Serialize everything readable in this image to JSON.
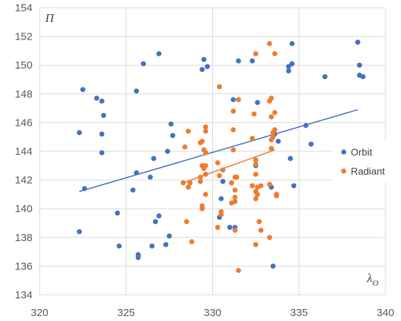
{
  "chart_data": {
    "type": "scatter",
    "xlabel": "λ",
    "xlabel_subscript": "ʘ",
    "ylabel": "Π",
    "xlim": [
      320,
      340
    ],
    "ylim": [
      134,
      154
    ],
    "xticks": [
      320,
      325,
      330,
      335,
      340
    ],
    "yticks": [
      134,
      136,
      138,
      140,
      142,
      144,
      146,
      148,
      150,
      152,
      154
    ],
    "grid": true,
    "legend_position": "right",
    "series": [
      {
        "name": "Orbit",
        "color": "#4472C4",
        "points": [
          [
            322.3,
            145.3
          ],
          [
            322.3,
            138.4
          ],
          [
            322.5,
            148.3
          ],
          [
            322.6,
            141.4
          ],
          [
            323.3,
            147.7
          ],
          [
            323.6,
            147.5
          ],
          [
            323.6,
            145.2
          ],
          [
            323.6,
            143.9
          ],
          [
            323.7,
            146.5
          ],
          [
            324.5,
            139.7
          ],
          [
            324.6,
            137.4
          ],
          [
            325.4,
            141.3
          ],
          [
            325.6,
            148.2
          ],
          [
            325.6,
            142.5
          ],
          [
            325.7,
            136.8
          ],
          [
            325.7,
            136.6
          ],
          [
            326.0,
            150.1
          ],
          [
            326.4,
            142.2
          ],
          [
            326.5,
            137.4
          ],
          [
            326.6,
            143.5
          ],
          [
            326.7,
            139.1
          ],
          [
            326.9,
            150.8
          ],
          [
            326.9,
            139.5
          ],
          [
            327.3,
            137.5
          ],
          [
            327.4,
            144.0
          ],
          [
            327.5,
            138.1
          ],
          [
            327.6,
            145.9
          ],
          [
            327.7,
            145.1
          ],
          [
            329.4,
            149.7
          ],
          [
            329.5,
            150.4
          ],
          [
            329.7,
            149.9
          ],
          [
            330.4,
            139.4
          ],
          [
            330.5,
            140.7
          ],
          [
            330.6,
            141.9
          ],
          [
            331.0,
            138.7
          ],
          [
            331.2,
            147.6
          ],
          [
            331.3,
            138.7
          ],
          [
            331.5,
            150.3
          ],
          [
            332.3,
            150.3
          ],
          [
            332.6,
            147.4
          ],
          [
            332.5,
            143.0
          ],
          [
            333.4,
            141.5
          ],
          [
            333.5,
            136.0
          ],
          [
            333.6,
            145.2
          ],
          [
            333.8,
            144.7
          ],
          [
            334.4,
            149.9
          ],
          [
            334.4,
            149.6
          ],
          [
            334.5,
            143.5
          ],
          [
            334.6,
            150.1
          ],
          [
            334.6,
            151.5
          ],
          [
            334.7,
            141.6
          ],
          [
            335.4,
            145.8
          ],
          [
            335.7,
            144.5
          ],
          [
            336.5,
            149.2
          ],
          [
            338.4,
            151.6
          ],
          [
            338.5,
            150.0
          ],
          [
            338.5,
            149.3
          ],
          [
            338.7,
            149.2
          ]
        ],
        "trendline": [
          [
            322.3,
            141.2
          ],
          [
            338.4,
            146.9
          ]
        ]
      },
      {
        "name": "Radiant",
        "color": "#ED7D31",
        "points": [
          [
            328.3,
            141.8
          ],
          [
            328.4,
            144.3
          ],
          [
            328.5,
            139.1
          ],
          [
            328.6,
            145.4
          ],
          [
            328.6,
            141.5
          ],
          [
            328.7,
            141.8
          ],
          [
            328.8,
            137.7
          ],
          [
            329.3,
            141.9
          ],
          [
            329.3,
            144.6
          ],
          [
            329.3,
            142.2
          ],
          [
            329.4,
            140.0
          ],
          [
            329.4,
            140.2
          ],
          [
            329.4,
            144.7
          ],
          [
            329.4,
            143.0
          ],
          [
            329.5,
            144.1
          ],
          [
            329.5,
            142.8
          ],
          [
            329.6,
            145.7
          ],
          [
            329.6,
            145.4
          ],
          [
            329.6,
            143.0
          ],
          [
            329.6,
            142.4
          ],
          [
            329.6,
            141.0
          ],
          [
            329.6,
            143.9
          ],
          [
            330.3,
            143.2
          ],
          [
            330.3,
            138.7
          ],
          [
            330.4,
            148.5
          ],
          [
            330.4,
            142.3
          ],
          [
            330.5,
            139.8
          ],
          [
            330.5,
            139.6
          ],
          [
            330.6,
            142.7
          ],
          [
            331.1,
            141.8
          ],
          [
            331.1,
            140.4
          ],
          [
            331.2,
            144.1
          ],
          [
            331.2,
            145.5
          ],
          [
            331.2,
            146.8
          ],
          [
            331.3,
            141.3
          ],
          [
            331.3,
            140.8
          ],
          [
            331.3,
            142.2
          ],
          [
            331.3,
            140.5
          ],
          [
            331.3,
            138.5
          ],
          [
            331.4,
            142.2
          ],
          [
            331.5,
            147.6
          ],
          [
            331.5,
            135.7
          ],
          [
            332.3,
            141.6
          ],
          [
            332.3,
            144.9
          ],
          [
            332.4,
            146.6
          ],
          [
            332.5,
            150.8
          ],
          [
            332.5,
            143.4
          ],
          [
            332.5,
            143.1
          ],
          [
            332.5,
            141.2
          ],
          [
            332.5,
            140.7
          ],
          [
            332.5,
            137.5
          ],
          [
            332.5,
            142.4
          ],
          [
            332.6,
            141.5
          ],
          [
            332.6,
            141.0
          ],
          [
            332.7,
            139.1
          ],
          [
            332.8,
            141.6
          ],
          [
            332.8,
            138.5
          ],
          [
            333.3,
            141.7
          ],
          [
            333.3,
            138.0
          ],
          [
            333.3,
            151.5
          ],
          [
            333.3,
            147.5
          ],
          [
            333.4,
            147.7
          ],
          [
            333.4,
            144.8
          ],
          [
            333.4,
            144.2
          ],
          [
            333.4,
            146.4
          ],
          [
            333.5,
            145.3
          ],
          [
            333.5,
            145.0
          ],
          [
            333.6,
            150.8
          ],
          [
            333.6,
            146.7
          ],
          [
            333.6,
            145.5
          ],
          [
            333.7,
            140.9
          ],
          [
            333.7,
            141.0
          ]
        ],
        "trendline": [
          [
            328.3,
            141.8
          ],
          [
            333.6,
            144.1
          ]
        ]
      }
    ]
  }
}
